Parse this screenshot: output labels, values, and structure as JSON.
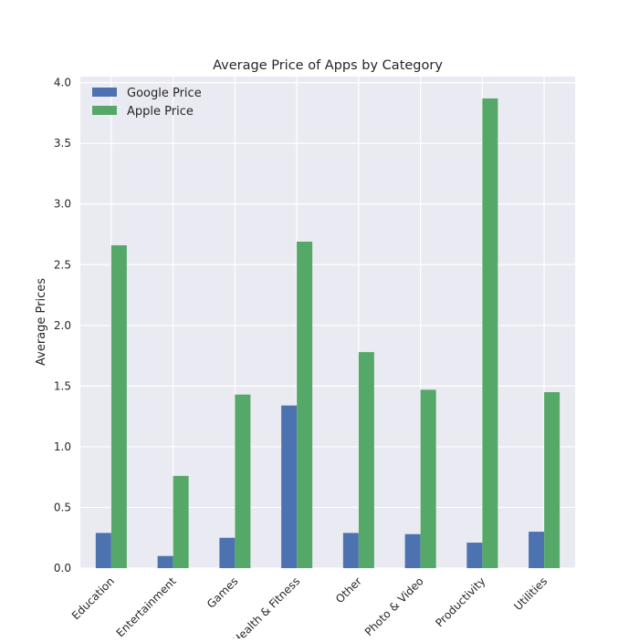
{
  "chart_data": {
    "type": "bar",
    "title": "Average Price of Apps by Category",
    "xlabel": "",
    "ylabel": "Average Prices",
    "ylim": [
      0,
      4.05
    ],
    "yticks": [
      "0.0",
      "0.5",
      "1.0",
      "1.5",
      "2.0",
      "2.5",
      "3.0",
      "3.5",
      "4.0"
    ],
    "categories": [
      "Education",
      "Entertainment",
      "Games",
      "Health & Fitness",
      "Other",
      "Photo & Video",
      "Productivity",
      "Utilities"
    ],
    "series": [
      {
        "name": "Google Price",
        "color": "#4c72b0",
        "values": [
          0.29,
          0.1,
          0.25,
          1.34,
          0.29,
          0.28,
          0.21,
          0.3
        ]
      },
      {
        "name": "Apple Price",
        "color": "#55a868",
        "values": [
          2.66,
          0.76,
          1.43,
          2.69,
          1.78,
          1.47,
          3.87,
          1.45
        ]
      }
    ],
    "grid": true,
    "legend": "top-left",
    "background": "#eaeaf2"
  }
}
